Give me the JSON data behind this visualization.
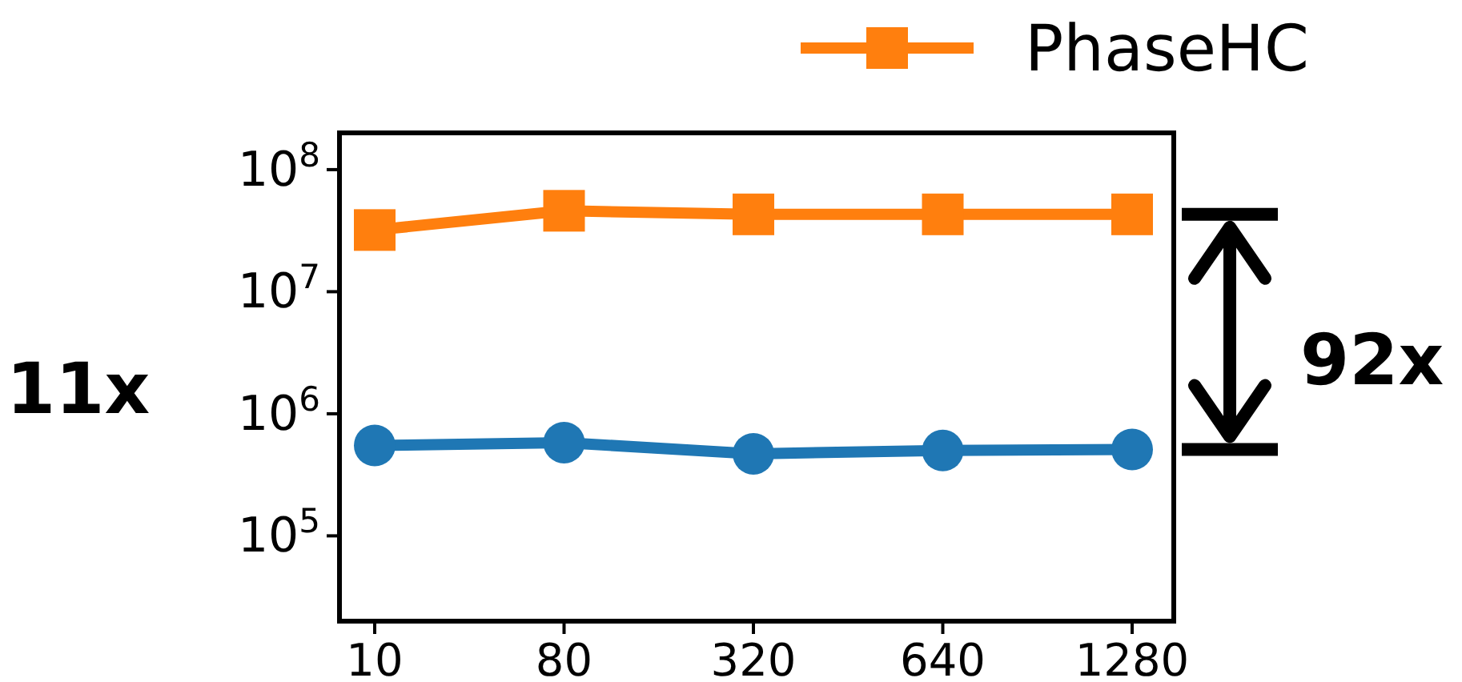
{
  "chart_data": {
    "type": "line",
    "categories": [
      "10",
      "80",
      "320",
      "640",
      "1280"
    ],
    "series": [
      {
        "color": "#1f77b4",
        "marker": "circle",
        "values": [
          550000,
          580000,
          470000,
          500000,
          510000
        ]
      },
      {
        "name": "PhaseHC",
        "color": "#ff7f0e",
        "marker": "square",
        "values": [
          32000000,
          46000000,
          43000000,
          43000000,
          43000000
        ]
      }
    ],
    "log": true,
    "ylim": [
      20000,
      200000000
    ],
    "yticks": [
      {
        "value": 100000,
        "label": "10$^{5}$"
      },
      {
        "value": 1000000,
        "label": "10$^{6}$"
      },
      {
        "value": 10000000,
        "label": "10$^{7}$"
      },
      {
        "value": 100000000,
        "label": "10$^{8}$"
      }
    ],
    "legend": "top",
    "annotations": [
      "11x",
      "92x"
    ]
  }
}
